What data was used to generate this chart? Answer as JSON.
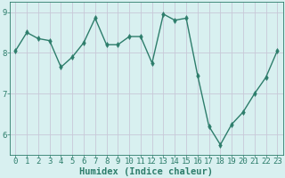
{
  "xlabel": "Humidex (Indice chaleur)",
  "ylabel": "",
  "x": [
    0,
    1,
    2,
    3,
    4,
    5,
    6,
    7,
    8,
    9,
    10,
    11,
    12,
    13,
    14,
    15,
    16,
    17,
    18,
    19,
    20,
    21,
    22,
    23
  ],
  "y": [
    8.05,
    8.5,
    8.35,
    8.3,
    7.65,
    7.9,
    8.25,
    8.85,
    8.2,
    8.2,
    8.4,
    8.4,
    7.75,
    8.95,
    8.8,
    8.85,
    7.45,
    6.2,
    5.75,
    6.25,
    6.55,
    7.0,
    7.4,
    8.05
  ],
  "line_color": "#2d7d6b",
  "marker": "d",
  "marker_color": "#2d7d6b",
  "bg_color": "#d8f0f0",
  "grid_color": "#c8c8d8",
  "axis_color": "#2d7d6b",
  "tick_color": "#2d7d6b",
  "label_color": "#2d7d6b",
  "ylim": [
    5.5,
    9.25
  ],
  "yticks": [
    6,
    7,
    8,
    9
  ],
  "xticks": [
    0,
    1,
    2,
    3,
    4,
    5,
    6,
    7,
    8,
    9,
    10,
    11,
    12,
    13,
    14,
    15,
    16,
    17,
    18,
    19,
    20,
    21,
    22,
    23
  ],
  "font_size": 6.5,
  "xlabel_font_size": 7.5,
  "linewidth": 1.0,
  "markersize": 3
}
